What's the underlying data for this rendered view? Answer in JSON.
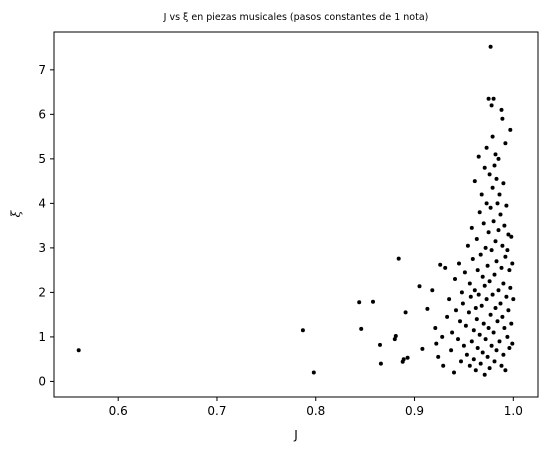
{
  "chart_data": {
    "type": "scatter",
    "title": "J vs ξ en piezas musicales (pasos constantes de 1 nota)",
    "xlabel": "J",
    "ylabel": "ξ",
    "xlim": [
      0.535,
      1.025
    ],
    "ylim": [
      -0.35,
      7.85
    ],
    "x_ticks": [
      {
        "value": 0.6,
        "label": "0.6"
      },
      {
        "value": 0.7,
        "label": "0.7"
      },
      {
        "value": 0.8,
        "label": "0.8"
      },
      {
        "value": 0.9,
        "label": "0.9"
      },
      {
        "value": 1.0,
        "label": "1.0"
      }
    ],
    "y_ticks": [
      {
        "value": 0,
        "label": "0"
      },
      {
        "value": 1,
        "label": "1"
      },
      {
        "value": 2,
        "label": "2"
      },
      {
        "value": 3,
        "label": "3"
      },
      {
        "value": 4,
        "label": "4"
      },
      {
        "value": 5,
        "label": "5"
      },
      {
        "value": 6,
        "label": "6"
      },
      {
        "value": 7,
        "label": "7"
      }
    ],
    "grid": false,
    "marker_color": "#000000",
    "points": [
      [
        0.56,
        0.7
      ],
      [
        0.787,
        1.15
      ],
      [
        0.798,
        0.2
      ],
      [
        0.844,
        1.78
      ],
      [
        0.846,
        1.18
      ],
      [
        0.858,
        1.79
      ],
      [
        0.865,
        0.82
      ],
      [
        0.866,
        0.4
      ],
      [
        0.88,
        0.95
      ],
      [
        0.881,
        1.02
      ],
      [
        0.884,
        2.76
      ],
      [
        0.888,
        0.44
      ],
      [
        0.889,
        0.5
      ],
      [
        0.891,
        1.55
      ],
      [
        0.893,
        0.53
      ],
      [
        0.905,
        2.14
      ],
      [
        0.908,
        0.73
      ],
      [
        0.913,
        1.63
      ],
      [
        0.918,
        2.05
      ],
      [
        0.921,
        1.2
      ],
      [
        0.922,
        0.85
      ],
      [
        0.924,
        0.55
      ],
      [
        0.926,
        2.62
      ],
      [
        0.928,
        1.0
      ],
      [
        0.929,
        0.35
      ],
      [
        0.931,
        2.55
      ],
      [
        0.933,
        1.45
      ],
      [
        0.935,
        1.85
      ],
      [
        0.937,
        0.7
      ],
      [
        0.938,
        1.1
      ],
      [
        0.94,
        0.2
      ],
      [
        0.941,
        2.3
      ],
      [
        0.942,
        1.6
      ],
      [
        0.944,
        0.95
      ],
      [
        0.945,
        2.65
      ],
      [
        0.946,
        1.35
      ],
      [
        0.947,
        0.45
      ],
      [
        0.948,
        2.0
      ],
      [
        0.949,
        1.75
      ],
      [
        0.95,
        0.8
      ],
      [
        0.951,
        2.45
      ],
      [
        0.952,
        1.25
      ],
      [
        0.953,
        0.6
      ],
      [
        0.954,
        3.05
      ],
      [
        0.955,
        1.55
      ],
      [
        0.956,
        2.2
      ],
      [
        0.956,
        0.35
      ],
      [
        0.957,
        1.9
      ],
      [
        0.958,
        3.45
      ],
      [
        0.958,
        0.9
      ],
      [
        0.959,
        2.75
      ],
      [
        0.96,
        1.15
      ],
      [
        0.96,
        0.5
      ],
      [
        0.961,
        4.5
      ],
      [
        0.961,
        2.05
      ],
      [
        0.962,
        1.65
      ],
      [
        0.962,
        0.25
      ],
      [
        0.963,
        3.2
      ],
      [
        0.963,
        1.4
      ],
      [
        0.964,
        2.5
      ],
      [
        0.964,
        0.75
      ],
      [
        0.965,
        5.05
      ],
      [
        0.965,
        1.95
      ],
      [
        0.966,
        3.8
      ],
      [
        0.966,
        1.05
      ],
      [
        0.967,
        2.85
      ],
      [
        0.967,
        0.4
      ],
      [
        0.968,
        4.2
      ],
      [
        0.968,
        1.7
      ],
      [
        0.969,
        2.35
      ],
      [
        0.969,
        0.65
      ],
      [
        0.97,
        3.55
      ],
      [
        0.97,
        1.3
      ],
      [
        0.971,
        4.8
      ],
      [
        0.971,
        2.15
      ],
      [
        0.971,
        0.15
      ],
      [
        0.972,
        3.0
      ],
      [
        0.972,
        0.95
      ],
      [
        0.973,
        5.25
      ],
      [
        0.973,
        1.85
      ],
      [
        0.973,
        4.0
      ],
      [
        0.974,
        2.6
      ],
      [
        0.974,
        0.55
      ],
      [
        0.975,
        6.35
      ],
      [
        0.975,
        3.35
      ],
      [
        0.975,
        1.2
      ],
      [
        0.976,
        4.65
      ],
      [
        0.976,
        2.25
      ],
      [
        0.976,
        0.3
      ],
      [
        0.977,
        7.52
      ],
      [
        0.977,
        3.9
      ],
      [
        0.977,
        1.5
      ],
      [
        0.978,
        6.2
      ],
      [
        0.978,
        2.95
      ],
      [
        0.978,
        0.8
      ],
      [
        0.979,
        5.5
      ],
      [
        0.979,
        4.35
      ],
      [
        0.979,
        1.95
      ],
      [
        0.98,
        6.35
      ],
      [
        0.98,
        3.6
      ],
      [
        0.98,
        1.1
      ],
      [
        0.981,
        4.85
      ],
      [
        0.981,
        2.4
      ],
      [
        0.981,
        0.45
      ],
      [
        0.982,
        5.1
      ],
      [
        0.982,
        3.15
      ],
      [
        0.982,
        1.65
      ],
      [
        0.983,
        4.55
      ],
      [
        0.983,
        2.7
      ],
      [
        0.983,
        0.7
      ],
      [
        0.984,
        4.0
      ],
      [
        0.984,
        1.35
      ],
      [
        0.985,
        5.0
      ],
      [
        0.985,
        3.4
      ],
      [
        0.985,
        2.05
      ],
      [
        0.986,
        4.2
      ],
      [
        0.986,
        0.9
      ],
      [
        0.987,
        3.75
      ],
      [
        0.987,
        1.75
      ],
      [
        0.988,
        6.1
      ],
      [
        0.988,
        2.55
      ],
      [
        0.988,
        0.35
      ],
      [
        0.989,
        5.9
      ],
      [
        0.989,
        3.05
      ],
      [
        0.989,
        1.45
      ],
      [
        0.99,
        4.45
      ],
      [
        0.99,
        2.2
      ],
      [
        0.99,
        0.6
      ],
      [
        0.991,
        3.5
      ],
      [
        0.991,
        1.2
      ],
      [
        0.992,
        5.35
      ],
      [
        0.992,
        2.8
      ],
      [
        0.992,
        0.25
      ],
      [
        0.993,
        3.95
      ],
      [
        0.993,
        1.9
      ],
      [
        0.994,
        2.95
      ],
      [
        0.994,
        1.0
      ],
      [
        0.995,
        3.3
      ],
      [
        0.995,
        1.6
      ],
      [
        0.996,
        2.5
      ],
      [
        0.996,
        0.75
      ],
      [
        0.997,
        5.65
      ],
      [
        0.997,
        2.1
      ],
      [
        0.998,
        3.25
      ],
      [
        0.998,
        1.3
      ],
      [
        0.999,
        2.65
      ],
      [
        0.999,
        0.85
      ],
      [
        1.0,
        1.85
      ]
    ]
  }
}
